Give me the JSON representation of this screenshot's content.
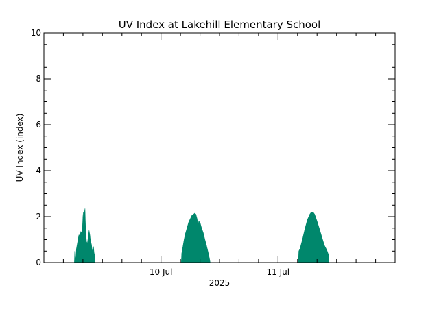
{
  "chart_data": {
    "type": "area",
    "title": "UV Index at Lakehill Elementary School",
    "xlabel": "2025",
    "ylabel": "UV Index (index)",
    "ylim": [
      0,
      10
    ],
    "y_ticks": [
      "0",
      "2",
      "4",
      "6",
      "8",
      "10"
    ],
    "xlim": [
      "2025-07-09 00:00",
      "2025-07-12 00:00"
    ],
    "x_ticks": [
      {
        "t": "2025-07-10 00:00",
        "label": "10 Jul"
      },
      {
        "t": "2025-07-11 00:00",
        "label": "11 Jul"
      }
    ],
    "grid": false,
    "colors": {
      "fill": "#00876c",
      "axis": "#000000"
    },
    "series": [
      {
        "points": [
          [
            "2025-07-09 06:15",
            0.0
          ],
          [
            "2025-07-09 06:20",
            0.5
          ],
          [
            "2025-07-09 06:30",
            0.1
          ],
          [
            "2025-07-09 06:40",
            0.6
          ],
          [
            "2025-07-09 06:50",
            0.8
          ],
          [
            "2025-07-09 07:00",
            1.0
          ],
          [
            "2025-07-09 07:10",
            1.2
          ],
          [
            "2025-07-09 07:25",
            1.2
          ],
          [
            "2025-07-09 07:35",
            1.35
          ],
          [
            "2025-07-09 07:45",
            1.3
          ],
          [
            "2025-07-09 07:55",
            1.6
          ],
          [
            "2025-07-09 08:00",
            2.0
          ],
          [
            "2025-07-09 08:05",
            2.2
          ],
          [
            "2025-07-09 08:10",
            1.4
          ],
          [
            "2025-07-09 08:15",
            2.35
          ],
          [
            "2025-07-09 08:20",
            2.1
          ],
          [
            "2025-07-09 08:25",
            2.35
          ],
          [
            "2025-07-09 08:35",
            1.3
          ],
          [
            "2025-07-09 08:45",
            0.9
          ],
          [
            "2025-07-09 08:55",
            0.85
          ],
          [
            "2025-07-09 09:05",
            1.1
          ],
          [
            "2025-07-09 09:15",
            1.4
          ],
          [
            "2025-07-09 09:25",
            1.2
          ],
          [
            "2025-07-09 09:35",
            0.9
          ],
          [
            "2025-07-09 09:45",
            0.8
          ],
          [
            "2025-07-09 09:55",
            0.5
          ],
          [
            "2025-07-09 10:05",
            0.6
          ],
          [
            "2025-07-09 10:10",
            0.7
          ],
          [
            "2025-07-09 10:20",
            0.3
          ],
          [
            "2025-07-09 10:25",
            0.4
          ],
          [
            "2025-07-09 10:30",
            0.0
          ],
          [
            "2025-07-10 04:10",
            0.0
          ],
          [
            "2025-07-10 04:15",
            0.4
          ],
          [
            "2025-07-10 04:30",
            0.7
          ],
          [
            "2025-07-10 04:45",
            1.0
          ],
          [
            "2025-07-10 05:00",
            1.25
          ],
          [
            "2025-07-10 05:20",
            1.5
          ],
          [
            "2025-07-10 05:40",
            1.75
          ],
          [
            "2025-07-10 06:00",
            1.9
          ],
          [
            "2025-07-10 06:20",
            2.05
          ],
          [
            "2025-07-10 06:40",
            2.1
          ],
          [
            "2025-07-10 06:55",
            2.15
          ],
          [
            "2025-07-10 07:10",
            2.1
          ],
          [
            "2025-07-10 07:25",
            1.9
          ],
          [
            "2025-07-10 07:35",
            1.6
          ],
          [
            "2025-07-10 07:45",
            1.8
          ],
          [
            "2025-07-10 08:00",
            1.75
          ],
          [
            "2025-07-10 08:20",
            1.5
          ],
          [
            "2025-07-10 08:40",
            1.3
          ],
          [
            "2025-07-10 09:00",
            1.0
          ],
          [
            "2025-07-10 09:20",
            0.75
          ],
          [
            "2025-07-10 09:40",
            0.45
          ],
          [
            "2025-07-10 09:55",
            0.2
          ],
          [
            "2025-07-10 10:05",
            0.0
          ],
          [
            "2025-07-11 04:10",
            0.0
          ],
          [
            "2025-07-11 04:15",
            0.5
          ],
          [
            "2025-07-11 04:30",
            0.6
          ],
          [
            "2025-07-11 05:00",
            1.0
          ],
          [
            "2025-07-11 05:30",
            1.45
          ],
          [
            "2025-07-11 06:00",
            1.85
          ],
          [
            "2025-07-11 06:30",
            2.1
          ],
          [
            "2025-07-11 06:50",
            2.2
          ],
          [
            "2025-07-11 07:10",
            2.2
          ],
          [
            "2025-07-11 07:30",
            2.1
          ],
          [
            "2025-07-11 08:00",
            1.8
          ],
          [
            "2025-07-11 08:30",
            1.45
          ],
          [
            "2025-07-11 09:00",
            1.1
          ],
          [
            "2025-07-11 09:30",
            0.75
          ],
          [
            "2025-07-11 10:00",
            0.55
          ],
          [
            "2025-07-11 10:20",
            0.35
          ]
        ]
      }
    ]
  }
}
